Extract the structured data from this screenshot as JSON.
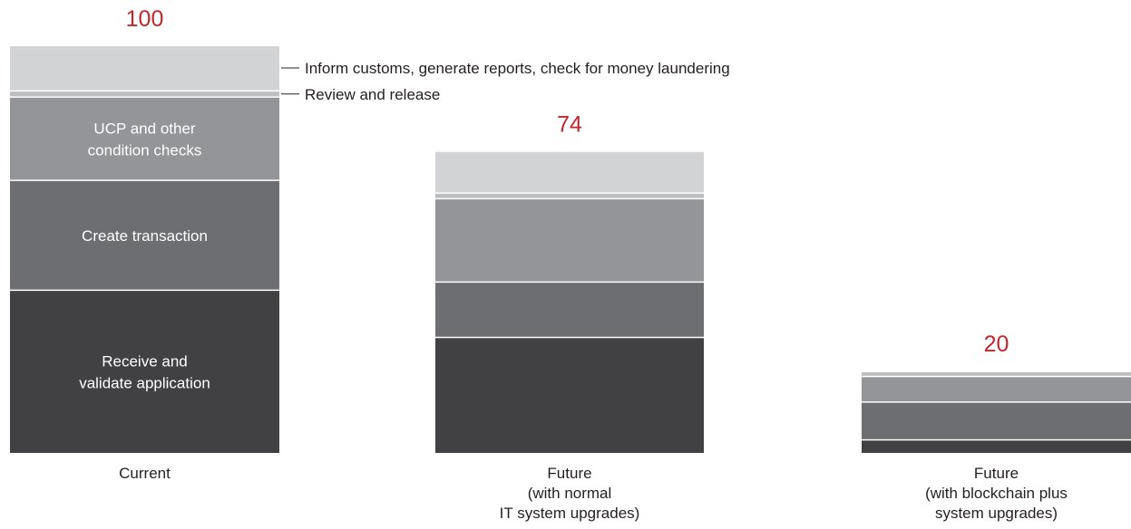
{
  "chart_data": {
    "type": "bar",
    "stacked": true,
    "categories": [
      "Current",
      "Future\n(with normal\nIT system upgrades)",
      "Future\n(with blockchain plus\nsystem upgrades)"
    ],
    "totals": [
      100,
      74,
      20
    ],
    "series": [
      {
        "name": "Receive and validate application",
        "color": "#414042",
        "values": [
          40.0,
          28.4,
          3.2
        ]
      },
      {
        "name": "Create transaction",
        "color": "#6d6e71",
        "values": [
          27.0,
          13.6,
          9.3
        ]
      },
      {
        "name": "UCP and other condition checks",
        "color": "#939598",
        "values": [
          20.5,
          20.5,
          6.3
        ]
      },
      {
        "name": "Review and release",
        "color": "#bcbec0",
        "values": [
          1.5,
          1.4,
          1.2
        ]
      },
      {
        "name": "Inform customs, generate reports, check for money laundering",
        "color": "#d1d3d4",
        "values": [
          11.0,
          10.1,
          0
        ]
      }
    ],
    "segment_labels": {
      "category": "Current",
      "labels": [
        "Receive and\nvalidate application",
        "Create transaction",
        "UCP and other\ncondition checks",
        "",
        ""
      ]
    },
    "annotations": [
      {
        "text": "Inform customs, generate reports, check for money laundering",
        "series": "Inform customs, generate reports, check for money laundering"
      },
      {
        "text": "Review and release",
        "series": "Review and release"
      }
    ],
    "total_label_color": "#c1272d",
    "ylim": [
      0,
      100
    ],
    "title": "",
    "xlabel": "",
    "ylabel": "",
    "grid": false,
    "legend": "none"
  }
}
